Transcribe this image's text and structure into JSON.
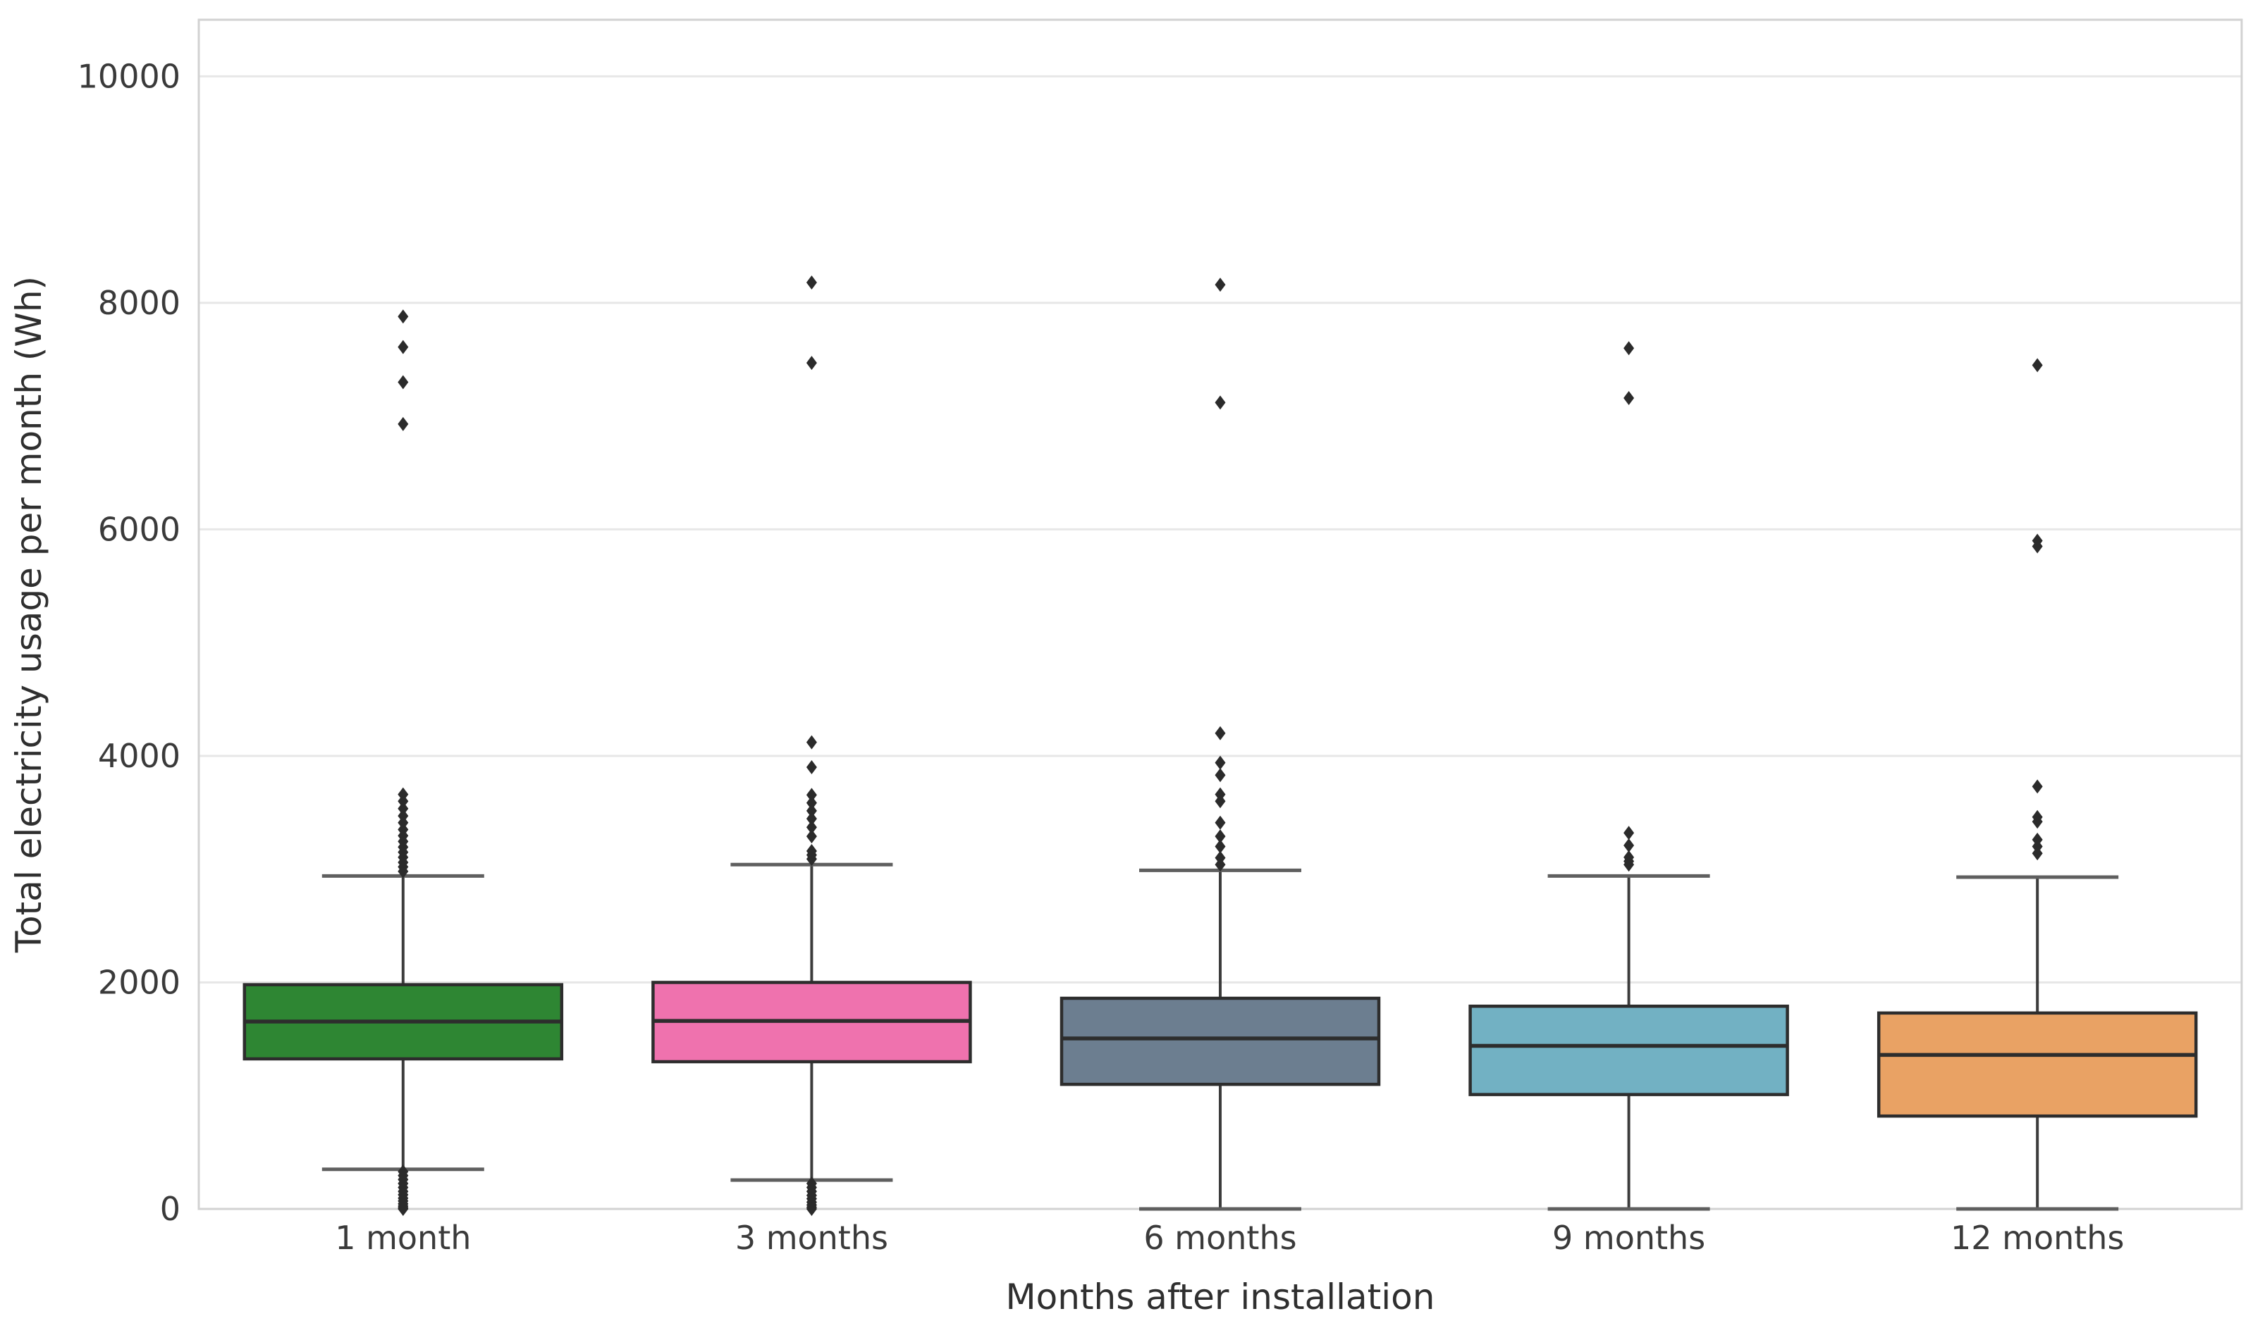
{
  "chart_data": {
    "type": "boxplot",
    "title": "",
    "xlabel": "Months after installation",
    "ylabel": "Total electricity usage per month (Wh)",
    "categories": [
      "1 month",
      "3 months",
      "6 months",
      "9 months",
      "12 months"
    ],
    "ylim": [
      0,
      10500
    ],
    "yticks": [
      0,
      2000,
      4000,
      6000,
      8000,
      10000
    ],
    "grid": "horizontal-gridlines-on",
    "legend": "none",
    "groups": [
      {
        "label": "1 month",
        "color": "#2e8633",
        "whisker_low": 350,
        "q1": 1325,
        "median": 1655,
        "q3": 1980,
        "whisker_high": 2940,
        "outliers": [
          0,
          10,
          25,
          45,
          70,
          95,
          125,
          155,
          190,
          225,
          260,
          295,
          330,
          2980,
          3020,
          3060,
          3105,
          3150,
          3195,
          3245,
          3295,
          3350,
          3410,
          3470,
          3535,
          3600,
          3660,
          6930,
          7300,
          7610,
          7880
        ]
      },
      {
        "label": "3 months",
        "color": "#ef72ae",
        "whisker_low": 255,
        "q1": 1300,
        "median": 1660,
        "q3": 2000,
        "whisker_high": 3040,
        "outliers": [
          0,
          15,
          35,
          60,
          90,
          120,
          155,
          190,
          225,
          3090,
          3125,
          3160,
          3290,
          3370,
          3445,
          3515,
          3585,
          3655,
          3900,
          4120,
          7470,
          8180
        ]
      },
      {
        "label": "6 months",
        "color": "#6c7e90",
        "whisker_low": 0,
        "q1": 1100,
        "median": 1505,
        "q3": 1860,
        "whisker_high": 2990,
        "outliers": [
          3040,
          3100,
          3200,
          3290,
          3410,
          3600,
          3660,
          3830,
          3940,
          4200,
          7120,
          8160
        ]
      },
      {
        "label": "9 months",
        "color": "#72b1c3",
        "whisker_low": 0,
        "q1": 1010,
        "median": 1440,
        "q3": 1790,
        "whisker_high": 2940,
        "outliers": [
          3040,
          3070,
          3105,
          3210,
          3320,
          7160,
          7600
        ]
      },
      {
        "label": "12 months",
        "color": "#e9a264",
        "whisker_low": 0,
        "q1": 820,
        "median": 1360,
        "q3": 1730,
        "whisker_high": 2930,
        "outliers": [
          3140,
          3200,
          3260,
          3420,
          3460,
          3730,
          5850,
          5900,
          7450
        ]
      }
    ],
    "style": {
      "background": "#ffffff",
      "gridline_color": "#e7e7e7",
      "spine_color": "#d2d2d2",
      "box_edge_color": "#2d2d2d",
      "median_color": "#2d2d2d",
      "whisker_color": "#3c3c3c",
      "cap_color": "#5f5f5f",
      "outlier_color": "#2b2b2b",
      "tick_label_color": "#3a3a3a",
      "axis_label_color": "#2f2f2f"
    }
  }
}
